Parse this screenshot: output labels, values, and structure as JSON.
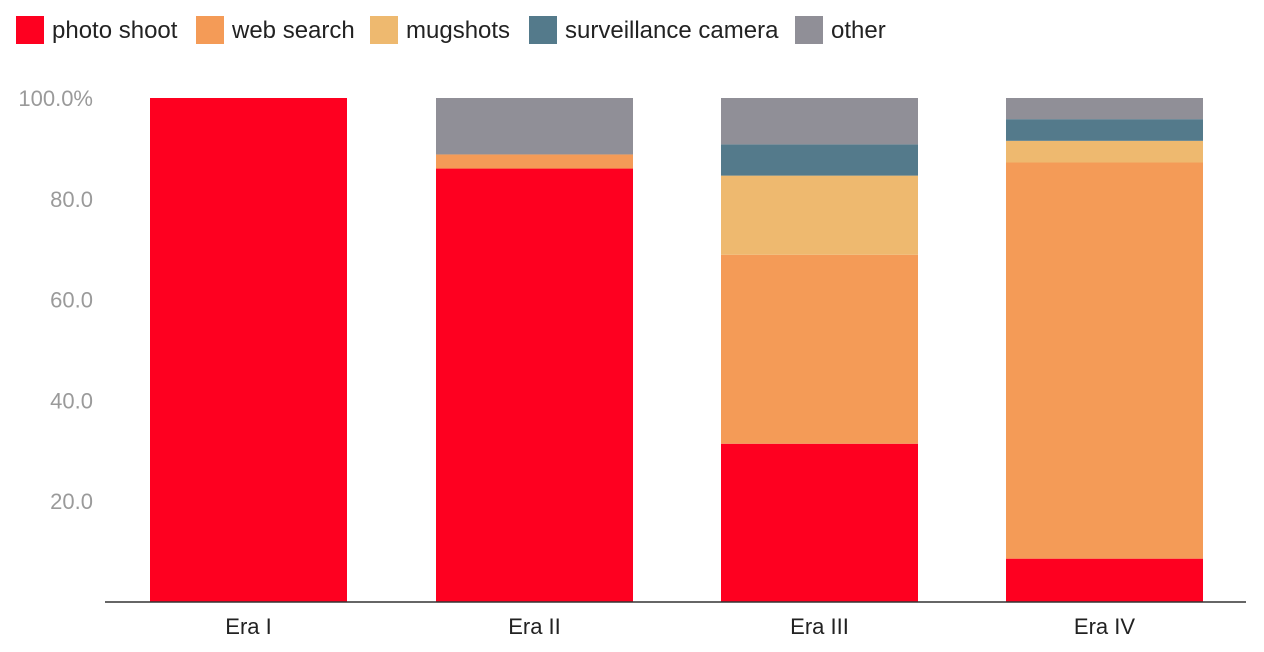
{
  "chart_data": {
    "type": "bar",
    "stacked": true,
    "categories": [
      "Era I",
      "Era II",
      "Era III",
      "Era IV"
    ],
    "series": [
      {
        "name": "photo shoot",
        "color": "#fe0020",
        "values": [
          100.0,
          86.0,
          31.4,
          8.6
        ]
      },
      {
        "name": "web search",
        "color": "#f49b57",
        "values": [
          0.0,
          2.8,
          37.5,
          78.6
        ]
      },
      {
        "name": "mugshots",
        "color": "#eeb96f",
        "values": [
          0.0,
          0.0,
          15.7,
          4.3
        ]
      },
      {
        "name": "surveillance camera",
        "color": "#547a8b",
        "values": [
          0.0,
          0.0,
          6.2,
          4.3
        ]
      },
      {
        "name": "other",
        "color": "#908f97",
        "values": [
          0.0,
          11.2,
          9.2,
          4.2
        ]
      }
    ],
    "y_ticks": [
      "20.0",
      "40.0",
      "60.0",
      "80.0",
      "100.0%"
    ],
    "ylim": [
      0,
      100
    ],
    "grid": false,
    "legend_position": "top-left"
  }
}
